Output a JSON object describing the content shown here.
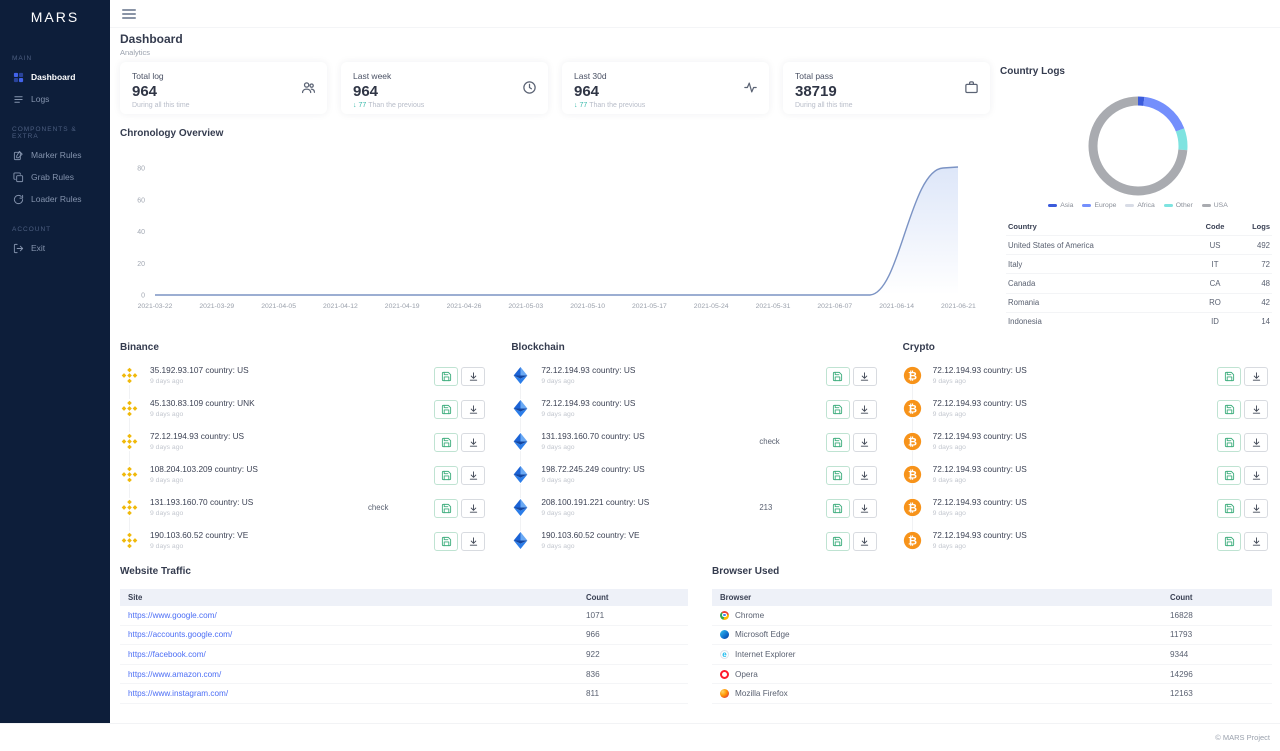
{
  "brand": "MARS",
  "page": {
    "title": "Dashboard",
    "subtitle": "Analytics",
    "footer": "© MARS Project"
  },
  "topbar": {
    "menu_icon": "hamburger-icon"
  },
  "colors": {
    "accent": "#4263eb",
    "sidebar_bg": "#0d1e3a",
    "positive": "#39b9ab",
    "binance": "#F0B90B",
    "bitcoin": "#F7931A",
    "blockchain_dark": "#1b63d6",
    "blockchain_light": "#6aa9f4",
    "save_green": "#3fae7e",
    "link_blue": "#4c6ef5"
  },
  "sidebar": {
    "sections": [
      {
        "label": "MAIN",
        "items": [
          {
            "label": "Dashboard",
            "icon": "dashboard-icon",
            "active": true
          },
          {
            "label": "Logs",
            "icon": "logs-icon",
            "active": false
          }
        ]
      },
      {
        "label": "COMPONENTS & EXTRA",
        "items": [
          {
            "label": "Marker Rules",
            "icon": "marker-rules-icon",
            "active": false
          },
          {
            "label": "Grab Rules",
            "icon": "grab-rules-icon",
            "active": false
          },
          {
            "label": "Loader Rules",
            "icon": "loader-rules-icon",
            "active": false
          }
        ]
      },
      {
        "label": "ACCOUNT",
        "items": [
          {
            "label": "Exit",
            "icon": "exit-icon",
            "active": false
          }
        ]
      }
    ]
  },
  "stats": [
    {
      "label": "Total log",
      "value": "964",
      "trend": "",
      "note": "During all this time",
      "icon": "users-icon"
    },
    {
      "label": "Last week",
      "value": "964",
      "trend": "↓ 77",
      "note": "Than the previous",
      "icon": "clock-icon"
    },
    {
      "label": "Last 30d",
      "value": "964",
      "trend": "↓ 77",
      "note": "Than the previous",
      "icon": "activity-icon"
    },
    {
      "label": "Total pass",
      "value": "38719",
      "trend": "",
      "note": "During all this time",
      "icon": "briefcase-icon"
    }
  ],
  "chart_data": [
    {
      "type": "area",
      "title": "Chronology Overview",
      "x": [
        "2021-03-22",
        "2021-03-29",
        "2021-04-05",
        "2021-04-12",
        "2021-04-19",
        "2021-04-26",
        "2021-05-03",
        "2021-05-10",
        "2021-05-17",
        "2021-05-24",
        "2021-05-31",
        "2021-06-07",
        "2021-06-14",
        "2021-06-21"
      ],
      "values": [
        0,
        0,
        0,
        0,
        0,
        0,
        0,
        0,
        0,
        0,
        0,
        0,
        2,
        80
      ],
      "yticks": [
        0,
        20,
        40,
        60,
        80
      ],
      "ylim": [
        0,
        80
      ],
      "grid": false,
      "legend_position": "none",
      "line_color": "#7b93c4",
      "fill_color_top": "rgba(150,178,235,0.32)",
      "fill_color_bottom": "rgba(150,178,235,0)"
    },
    {
      "type": "pie",
      "title": "Country Logs",
      "labels": [
        "Asia",
        "Europe",
        "Africa",
        "Other",
        "USA"
      ],
      "values": [
        14,
        114,
        0,
        48,
        492
      ],
      "colors": [
        "#3b5bdb",
        "#748ffc",
        "#d8dce6",
        "#7ee3e0",
        "#a9abb0"
      ],
      "legend_position": "bottom"
    }
  ],
  "country_logs": {
    "title": "Country Logs",
    "table": {
      "headers": [
        "Country",
        "Code",
        "Logs"
      ],
      "rows": [
        [
          "United States of America",
          "US",
          "492"
        ],
        [
          "Italy",
          "IT",
          "72"
        ],
        [
          "Canada",
          "CA",
          "48"
        ],
        [
          "Romania",
          "RO",
          "42"
        ],
        [
          "Indonesia",
          "ID",
          "14"
        ]
      ]
    }
  },
  "lists": [
    {
      "title": "Binance",
      "icon": "binance-icon",
      "rows": [
        {
          "text": "35.192.93.107 country: US",
          "sub": "9 days ago",
          "tag": ""
        },
        {
          "text": "45.130.83.109 country: UNK",
          "sub": "9 days ago",
          "tag": ""
        },
        {
          "text": "72.12.194.93 country: US",
          "sub": "9 days ago",
          "tag": ""
        },
        {
          "text": "108.204.103.209 country: US",
          "sub": "9 days ago",
          "tag": ""
        },
        {
          "text": "131.193.160.70 country: US",
          "sub": "9 days ago",
          "tag": "check"
        },
        {
          "text": "190.103.60.52 country: VE",
          "sub": "9 days ago",
          "tag": ""
        }
      ]
    },
    {
      "title": "Blockchain",
      "icon": "blockchain-icon",
      "rows": [
        {
          "text": "72.12.194.93 country: US",
          "sub": "9 days ago",
          "tag": ""
        },
        {
          "text": "72.12.194.93 country: US",
          "sub": "9 days ago",
          "tag": ""
        },
        {
          "text": "131.193.160.70 country: US",
          "sub": "9 days ago",
          "tag": "check"
        },
        {
          "text": "198.72.245.249 country: US",
          "sub": "9 days ago",
          "tag": ""
        },
        {
          "text": "208.100.191.221 country: US",
          "sub": "9 days ago",
          "tag": "213"
        },
        {
          "text": "190.103.60.52 country: VE",
          "sub": "9 days ago",
          "tag": ""
        }
      ]
    },
    {
      "title": "Crypto",
      "icon": "bitcoin-icon",
      "rows": [
        {
          "text": "72.12.194.93 country: US",
          "sub": "9 days ago",
          "tag": ""
        },
        {
          "text": "72.12.194.93 country: US",
          "sub": "9 days ago",
          "tag": ""
        },
        {
          "text": "72.12.194.93 country: US",
          "sub": "9 days ago",
          "tag": ""
        },
        {
          "text": "72.12.194.93 country: US",
          "sub": "9 days ago",
          "tag": ""
        },
        {
          "text": "72.12.194.93 country: US",
          "sub": "9 days ago",
          "tag": ""
        },
        {
          "text": "72.12.194.93 country: US",
          "sub": "9 days ago",
          "tag": ""
        }
      ]
    }
  ],
  "row_actions": [
    {
      "name": "save-button",
      "icon": "save-icon"
    },
    {
      "name": "download-button",
      "icon": "download-icon"
    }
  ],
  "website_traffic": {
    "title": "Website Traffic",
    "headers": [
      "Site",
      "Count"
    ],
    "rows": [
      {
        "site": "https://www.google.com/",
        "count": "1071"
      },
      {
        "site": "https://accounts.google.com/",
        "count": "966"
      },
      {
        "site": "https://facebook.com/",
        "count": "922"
      },
      {
        "site": "https://www.amazon.com/",
        "count": "836"
      },
      {
        "site": "https://www.instagram.com/",
        "count": "811"
      }
    ]
  },
  "browser_used": {
    "title": "Browser Used",
    "headers": [
      "Browser",
      "Count"
    ],
    "rows": [
      {
        "name": "Chrome",
        "icon": "chrome-icon",
        "count": "16828"
      },
      {
        "name": "Microsoft Edge",
        "icon": "edge-icon",
        "count": "11793"
      },
      {
        "name": "Internet Explorer",
        "icon": "ie-icon",
        "count": "9344"
      },
      {
        "name": "Opera",
        "icon": "opera-icon",
        "count": "14296"
      },
      {
        "name": "Mozilla Firefox",
        "icon": "firefox-icon",
        "count": "12163"
      }
    ]
  }
}
